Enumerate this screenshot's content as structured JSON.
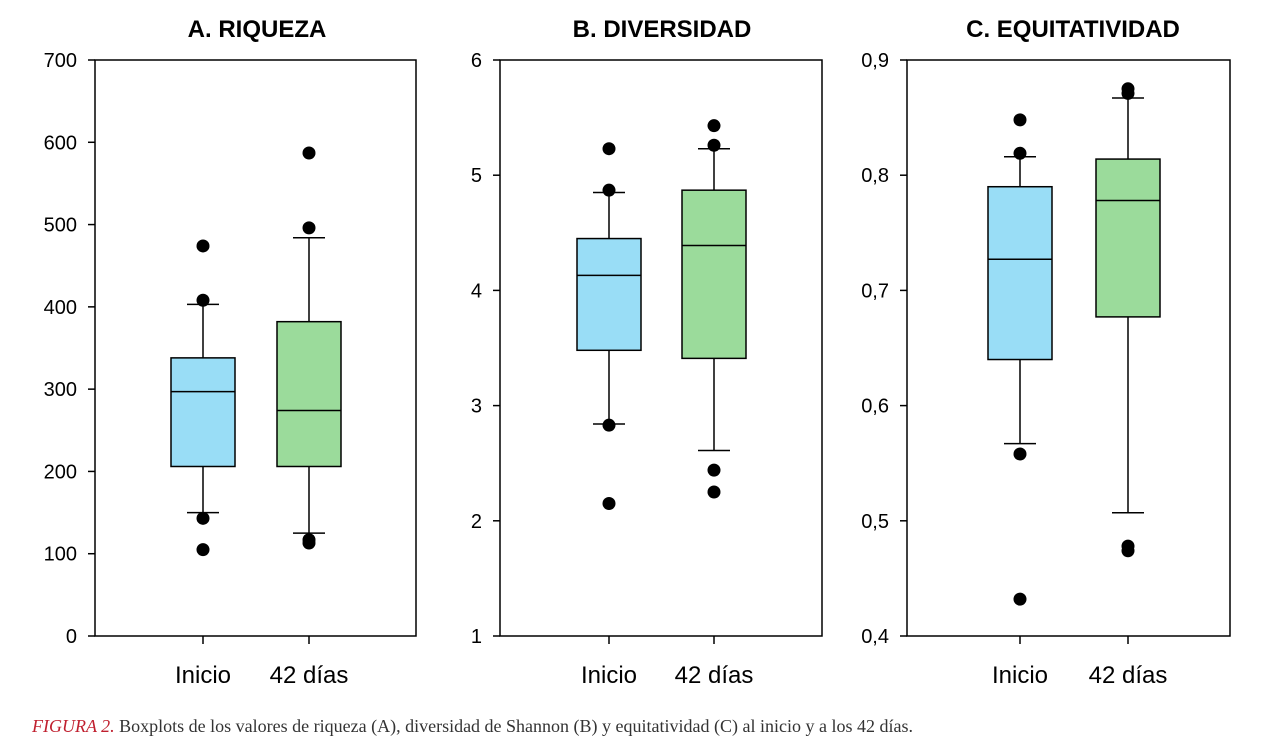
{
  "chart_data": [
    {
      "type": "box",
      "title": "A. RIQUEZA",
      "categories": [
        "Inicio",
        "42 días"
      ],
      "ylim": [
        0,
        700
      ],
      "yticks": [
        "0",
        "100",
        "200",
        "300",
        "400",
        "500",
        "600",
        "700"
      ],
      "tick_values": [
        0,
        100,
        200,
        300,
        400,
        500,
        600,
        700
      ],
      "boxes": [
        {
          "whisker_low": 150,
          "q1": 206,
          "median": 297,
          "q3": 338,
          "whisker_high": 403,
          "outliers": [
            105,
            143,
            408,
            474
          ]
        },
        {
          "whisker_low": 125,
          "q1": 206,
          "median": 274,
          "q3": 382,
          "whisker_high": 484,
          "outliers": [
            113,
            117,
            496,
            587
          ]
        }
      ]
    },
    {
      "type": "box",
      "title": "B. DIVERSIDAD",
      "categories": [
        "Inicio",
        "42 días"
      ],
      "ylim": [
        1,
        6
      ],
      "yticks": [
        "1",
        "2",
        "3",
        "4",
        "5",
        "6"
      ],
      "tick_values": [
        1,
        2,
        3,
        4,
        5,
        6
      ],
      "boxes": [
        {
          "whisker_low": 2.84,
          "q1": 3.48,
          "median": 4.13,
          "q3": 4.45,
          "whisker_high": 4.85,
          "outliers": [
            2.15,
            2.83,
            4.87,
            5.23
          ]
        },
        {
          "whisker_low": 2.61,
          "q1": 3.41,
          "median": 4.39,
          "q3": 4.87,
          "whisker_high": 5.23,
          "outliers": [
            2.25,
            2.44,
            5.26,
            5.43
          ]
        }
      ]
    },
    {
      "type": "box",
      "title": "C. EQUITATIVIDAD",
      "categories": [
        "Inicio",
        "42 días"
      ],
      "ylim": [
        0.4,
        0.9
      ],
      "yticks": [
        "0,4",
        "0,5",
        "0,6",
        "0,7",
        "0,8",
        "0,9"
      ],
      "tick_values": [
        0.4,
        0.5,
        0.6,
        0.7,
        0.8,
        0.9
      ],
      "boxes": [
        {
          "whisker_low": 0.567,
          "q1": 0.64,
          "median": 0.727,
          "q3": 0.79,
          "whisker_high": 0.816,
          "outliers": [
            0.432,
            0.558,
            0.819,
            0.848
          ]
        },
        {
          "whisker_low": 0.507,
          "q1": 0.677,
          "median": 0.778,
          "q3": 0.814,
          "whisker_high": 0.867,
          "outliers": [
            0.474,
            0.478,
            0.871,
            0.875
          ]
        }
      ]
    }
  ],
  "colors": {
    "inicio": "#99ddf6",
    "dias42": "#9bdb9b"
  },
  "caption": {
    "label": "FIGURA 2.",
    "text": "Boxplots de los valores de riqueza (A), diversidad de Shannon (B) y equitatividad (C) al inicio y a los 42 días."
  }
}
